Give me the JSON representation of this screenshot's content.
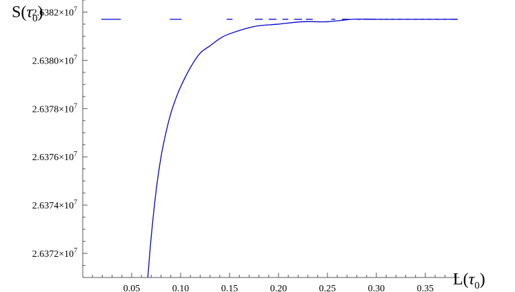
{
  "chart_data": {
    "type": "line",
    "xlabel": "L",
    "xlabel_arg": "τ",
    "xlabel_sub": "0",
    "ylabel": "S",
    "ylabel_arg": "τ",
    "ylabel_sub": "0",
    "xlim": [
      0.0,
      0.385
    ],
    "ylim": [
      26371000.0,
      26382500.0
    ],
    "grid": false,
    "x_ticks": [
      {
        "value": 0.05,
        "label": "0.05"
      },
      {
        "value": 0.1,
        "label": "0.10"
      },
      {
        "value": 0.15,
        "label": "0.15"
      },
      {
        "value": 0.2,
        "label": "0.20"
      },
      {
        "value": 0.25,
        "label": "0.25"
      },
      {
        "value": 0.3,
        "label": "0.30"
      },
      {
        "value": 0.35,
        "label": "0.35"
      }
    ],
    "y_ticks": [
      {
        "value": 26372000.0,
        "mantissa": "2.6372",
        "times": "×10",
        "exp": "7"
      },
      {
        "value": 26374000.0,
        "mantissa": "2.6374",
        "times": "×10",
        "exp": "7"
      },
      {
        "value": 26376000.0,
        "mantissa": "2.6376",
        "times": "×10",
        "exp": "7"
      },
      {
        "value": 26378000.0,
        "mantissa": "2.6378",
        "times": "×10",
        "exp": "7"
      },
      {
        "value": 26380000.0,
        "mantissa": "2.6380",
        "times": "×10",
        "exp": "7"
      },
      {
        "value": 26382000.0,
        "mantissa": "2.6382",
        "times": "×10",
        "exp": "7"
      }
    ],
    "series": [
      {
        "style": "solid",
        "color": "#0000cc",
        "x": [
          0.0665,
          0.07,
          0.075,
          0.08,
          0.085,
          0.09,
          0.095,
          0.1,
          0.11,
          0.12,
          0.13,
          0.14,
          0.15,
          0.175,
          0.2,
          0.225,
          0.25,
          0.275,
          0.3,
          0.325,
          0.35,
          0.383
        ],
        "y": [
          26371000.0,
          26372700.0,
          26374600.0,
          26376000.0,
          26377000.0,
          26377800.0,
          26378400.0,
          26378900.0,
          26379700.0,
          26380300.0,
          26380600.0,
          26380900.0,
          26381100.0,
          26381400.0,
          26381500.0,
          26381600.0,
          26381600.0,
          26381700.0,
          26381700.0,
          26381700.0,
          26381700.0,
          26381700.0
        ]
      },
      {
        "style": "dashed",
        "color": "#0000cc",
        "y_value": 26381700.0,
        "segments": [
          [
            0.019,
            0.039
          ],
          [
            0.089,
            0.101
          ],
          [
            0.147,
            0.153
          ],
          [
            0.176,
            0.184
          ],
          [
            0.19,
            0.198
          ],
          [
            0.204,
            0.21
          ],
          [
            0.216,
            0.224
          ],
          [
            0.228,
            0.235
          ],
          [
            0.254,
            0.258
          ],
          [
            0.265,
            0.272
          ],
          [
            0.28,
            0.284
          ],
          [
            0.287,
            0.3
          ],
          [
            0.303,
            0.306
          ],
          [
            0.309,
            0.312
          ],
          [
            0.315,
            0.318
          ],
          [
            0.322,
            0.326
          ],
          [
            0.33,
            0.334
          ],
          [
            0.338,
            0.342
          ],
          [
            0.345,
            0.349
          ],
          [
            0.352,
            0.356
          ],
          [
            0.36,
            0.364
          ],
          [
            0.368,
            0.372
          ],
          [
            0.376,
            0.383
          ]
        ]
      }
    ]
  }
}
